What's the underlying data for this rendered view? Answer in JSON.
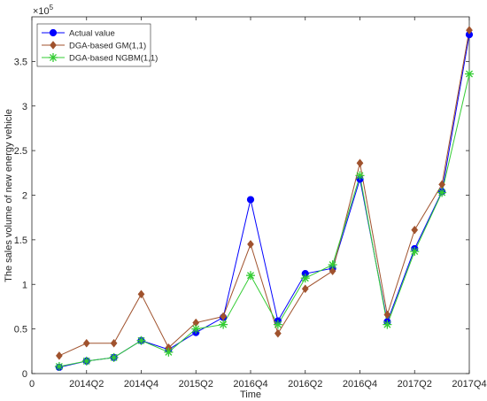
{
  "chart_data": {
    "type": "line",
    "xlabel": "Time",
    "ylabel": "The sales volume of new energy vehicle",
    "exponent_label": "×10",
    "exponent_power": "5",
    "x_ticks": [
      "0",
      "2014Q2",
      "2014Q4",
      "2015Q2",
      "2016Q4",
      "2016Q2",
      "2016Q4",
      "2017Q2",
      "2017Q4"
    ],
    "y_ticks": [
      "0",
      "0.5",
      "1",
      "1.5",
      "2",
      "2.5",
      "3",
      "3.5"
    ],
    "xlim": [
      0,
      16
    ],
    "ylim": [
      0,
      4
    ],
    "grid": false,
    "legend_position": "top-left",
    "x": [
      1,
      2,
      3,
      4,
      5,
      6,
      7,
      8,
      9,
      10,
      11,
      12,
      13,
      14,
      15,
      16
    ],
    "series": [
      {
        "name": "Actual value",
        "color": "#0000ff",
        "marker": "circle",
        "values": [
          0.07,
          0.14,
          0.18,
          0.37,
          0.27,
          0.46,
          0.63,
          1.95,
          0.59,
          1.12,
          1.18,
          2.18,
          0.58,
          1.4,
          2.04,
          3.8
        ]
      },
      {
        "name": "DGA-based GM(1,1)",
        "color": "#a0522d",
        "marker": "diamond",
        "values": [
          0.2,
          0.34,
          0.34,
          0.89,
          0.29,
          0.57,
          0.64,
          1.45,
          0.45,
          0.95,
          1.15,
          2.36,
          0.66,
          1.61,
          2.12,
          3.85
        ]
      },
      {
        "name": "DGA-based NGBM(1,1)",
        "color": "#33cc33",
        "marker": "star",
        "values": [
          0.08,
          0.14,
          0.18,
          0.37,
          0.24,
          0.5,
          0.55,
          1.1,
          0.55,
          1.07,
          1.22,
          2.22,
          0.55,
          1.37,
          2.03,
          3.36
        ]
      }
    ]
  }
}
